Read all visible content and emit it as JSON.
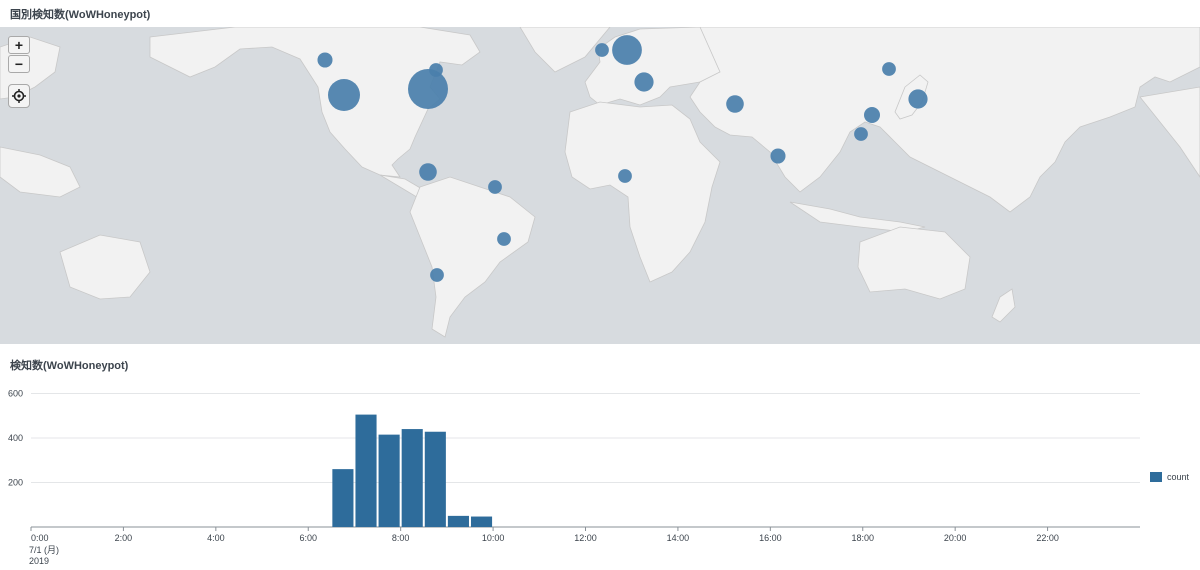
{
  "map_panel": {
    "title": "国別検知数(WoWHoneypot)",
    "controls": {
      "zoom_in": "+",
      "zoom_out": "−",
      "locate_icon": "crosshair-icon"
    },
    "colors": {
      "water": "#d7dbdf",
      "land": "#f2f2f2",
      "border": "#c8c8c8",
      "marker": "#4a7fab"
    },
    "markers": [
      {
        "name": "north-america-east",
        "level": 1.0
      },
      {
        "name": "north-america-west",
        "level": 0.75
      },
      {
        "name": "europe-central",
        "level": 0.68
      },
      {
        "name": "east-europe",
        "level": 0.35
      },
      {
        "name": "japan",
        "level": 0.35
      },
      {
        "name": "central-america",
        "level": 0.3
      },
      {
        "name": "iran",
        "level": 0.3
      },
      {
        "name": "china-east",
        "level": 0.25
      },
      {
        "name": "pacific-northwest",
        "level": 0.22
      },
      {
        "name": "india-south",
        "level": 0.22
      },
      {
        "name": "korea",
        "level": 0.18
      },
      {
        "name": "china-south",
        "level": 0.18
      },
      {
        "name": "uk",
        "level": 0.18
      },
      {
        "name": "canada-east",
        "level": 0.18
      },
      {
        "name": "brazil-north",
        "level": 0.18
      },
      {
        "name": "brazil-south",
        "level": 0.18
      },
      {
        "name": "chile",
        "level": 0.18
      },
      {
        "name": "west-africa",
        "level": 0.18
      }
    ]
  },
  "chart_panel": {
    "title": "検知数(WoWHoneypot)",
    "chart_data": {
      "type": "bar",
      "title": "検知数(WoWHoneypot)",
      "xlabel": "",
      "ylabel": "",
      "series": [
        {
          "name": "count",
          "color": "#2e6c9b",
          "x": [
            "6:30",
            "7:00",
            "7:30",
            "8:00",
            "8:30",
            "9:00",
            "9:30"
          ],
          "values": [
            260,
            505,
            415,
            440,
            428,
            50,
            47
          ]
        }
      ],
      "xlim_hours": [
        0,
        24
      ],
      "ylim": [
        0,
        620
      ],
      "yticks": [
        200,
        400,
        600
      ],
      "xticks": [
        "0:00",
        "2:00",
        "4:00",
        "6:00",
        "8:00",
        "10:00",
        "12:00",
        "14:00",
        "16:00",
        "18:00",
        "20:00",
        "22:00"
      ],
      "xtick_first_sub": [
        "7/1 (月)",
        "2019"
      ],
      "grid": true,
      "legend": "right"
    },
    "legend_label": "count"
  }
}
